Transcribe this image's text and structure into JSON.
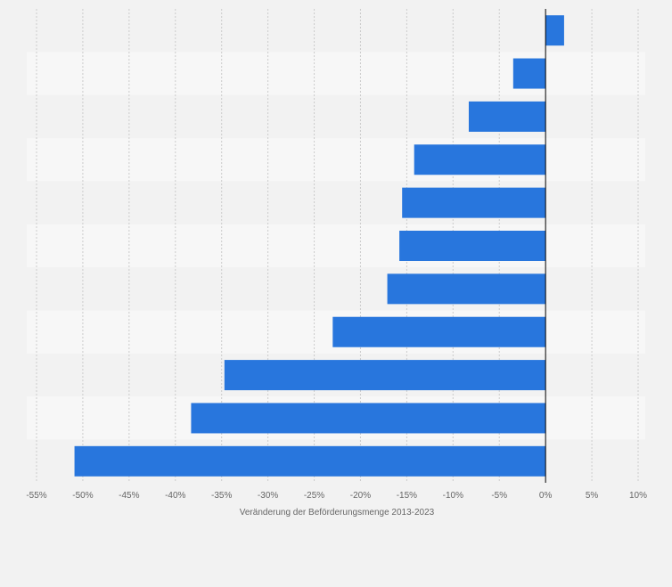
{
  "chart_data": {
    "type": "bar",
    "orientation": "horizontal",
    "title": "",
    "xlabel": "Veränderung der Beförderungsmenge 2013-2023",
    "ylabel": "",
    "xlim": [
      -55,
      10
    ],
    "xticks": [
      -55,
      -50,
      -45,
      -40,
      -35,
      -30,
      -25,
      -20,
      -15,
      -10,
      -5,
      0,
      5,
      10
    ],
    "xtick_labels": [
      "-55%",
      "-50%",
      "-45%",
      "-40%",
      "-35%",
      "-30%",
      "-25%",
      "-20%",
      "-15%",
      "-10%",
      "-5%",
      "0%",
      "5%",
      "10%"
    ],
    "categories": [
      "",
      "",
      "",
      "",
      "",
      "",
      "",
      "",
      "",
      "",
      ""
    ],
    "values": [
      2.0,
      -3.5,
      -8.3,
      -14.2,
      -15.5,
      -15.8,
      -17.1,
      -23.0,
      -34.7,
      -38.3,
      -50.9
    ],
    "grid": true,
    "legend": "none"
  },
  "colors": {
    "bar": "#2876dd",
    "background": "#f2f2f2",
    "band_light": "#f7f7f7",
    "band_dark": "#f2f2f2",
    "gridline": "#cccccc",
    "zero_line": "#000000",
    "text": "#666666"
  }
}
